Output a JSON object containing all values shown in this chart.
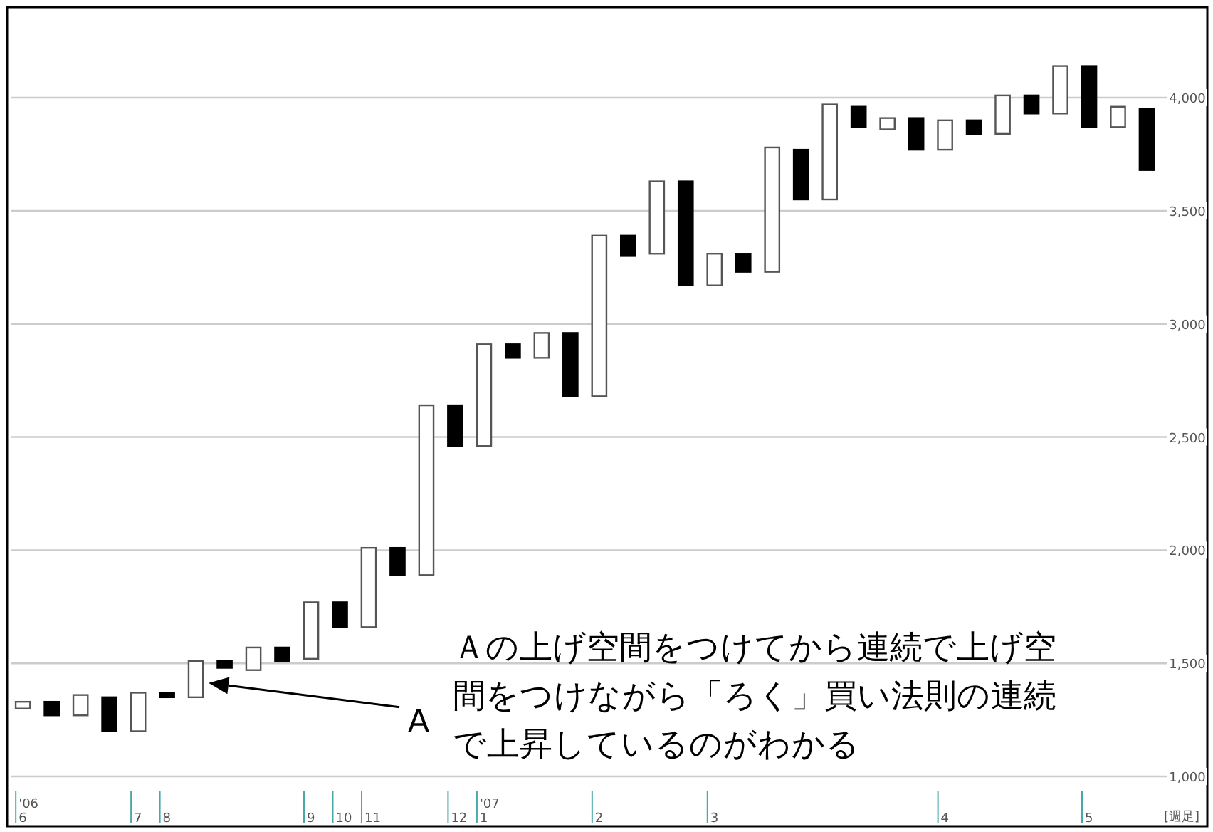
{
  "chart_data": {
    "type": "candlestick",
    "xlabel": "[週足]",
    "categories": [
      "'06\n6",
      null,
      null,
      null,
      "7",
      "8",
      null,
      null,
      null,
      null,
      "9",
      "10",
      "11",
      null,
      null,
      "12",
      "'07\n1",
      null,
      null,
      null,
      "2",
      null,
      null,
      null,
      "3",
      null,
      null,
      null,
      null,
      null,
      null,
      null,
      "4",
      null,
      null,
      null,
      null,
      "5",
      null,
      null
    ],
    "ohlc": [
      [
        1300,
        1330,
        1300,
        1330
      ],
      [
        1330,
        1330,
        1270,
        1270
      ],
      [
        1270,
        1360,
        1270,
        1360
      ],
      [
        1350,
        1350,
        1200,
        1200
      ],
      [
        1200,
        1370,
        1200,
        1370
      ],
      [
        1370,
        1370,
        1350,
        1350
      ],
      [
        1350,
        1510,
        1350,
        1510
      ],
      [
        1510,
        1510,
        1480,
        1480
      ],
      [
        1470,
        1570,
        1470,
        1570
      ],
      [
        1570,
        1570,
        1510,
        1510
      ],
      [
        1520,
        1770,
        1520,
        1770
      ],
      [
        1770,
        1770,
        1660,
        1660
      ],
      [
        1660,
        2010,
        1660,
        2010
      ],
      [
        2010,
        2010,
        1890,
        1890
      ],
      [
        1890,
        2640,
        1890,
        2640
      ],
      [
        2640,
        2640,
        2460,
        2460
      ],
      [
        2460,
        2910,
        2460,
        2910
      ],
      [
        2910,
        2910,
        2850,
        2850
      ],
      [
        2850,
        2960,
        2850,
        2960
      ],
      [
        2960,
        2960,
        2680,
        2680
      ],
      [
        2680,
        3390,
        2680,
        3390
      ],
      [
        3390,
        3390,
        3300,
        3300
      ],
      [
        3310,
        3630,
        3310,
        3630
      ],
      [
        3630,
        3630,
        3170,
        3170
      ],
      [
        3170,
        3310,
        3170,
        3310
      ],
      [
        3310,
        3310,
        3230,
        3230
      ],
      [
        3230,
        3780,
        3230,
        3780
      ],
      [
        3770,
        3770,
        3550,
        3550
      ],
      [
        3550,
        3970,
        3550,
        3970
      ],
      [
        3960,
        3960,
        3870,
        3870
      ],
      [
        3860,
        3910,
        3860,
        3910
      ],
      [
        3910,
        3910,
        3770,
        3770
      ],
      [
        3770,
        3900,
        3770,
        3900
      ],
      [
        3900,
        3900,
        3840,
        3840
      ],
      [
        3840,
        4010,
        3840,
        4010
      ],
      [
        4010,
        4010,
        3930,
        3930
      ],
      [
        3930,
        4140,
        3930,
        4140
      ],
      [
        4140,
        4140,
        3870,
        3870
      ],
      [
        3870,
        3960,
        3870,
        3960
      ],
      [
        3950,
        3950,
        3680,
        3680
      ]
    ],
    "ylim": [
      1000,
      4400
    ],
    "yticks": [
      {
        "value": 1000,
        "label": "1,000"
      },
      {
        "value": 1500,
        "label": "1,500"
      },
      {
        "value": 2000,
        "label": "2,000"
      },
      {
        "value": 2500,
        "label": "2,500"
      },
      {
        "value": 3000,
        "label": "3,000"
      },
      {
        "value": 3500,
        "label": "3,500"
      },
      {
        "value": 4000,
        "label": "4,000"
      }
    ],
    "grid": "y",
    "annotations": [
      "A",
      "Ａの上げ空間をつけてから連続で上げ空間をつけながら「ろく」買い法則の連続で上昇しているのがわかる"
    ]
  }
}
